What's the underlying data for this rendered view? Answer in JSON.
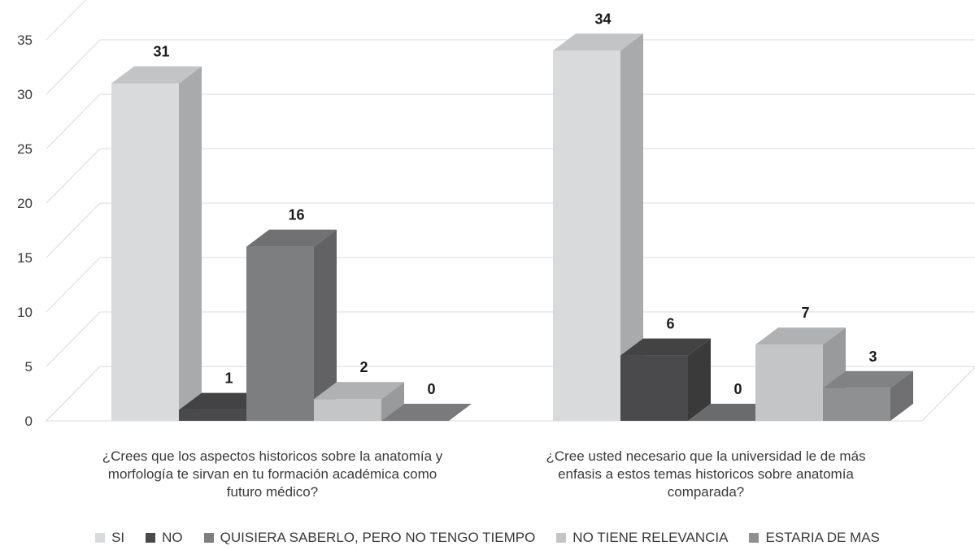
{
  "chart_data": {
    "type": "bar",
    "title": "",
    "xlabel": "",
    "ylabel": "",
    "ylim": [
      0,
      35
    ],
    "yticks": [
      0,
      5,
      10,
      15,
      20,
      25,
      30,
      35
    ],
    "grid": true,
    "legend_position": "bottom",
    "three_d": true,
    "categories": [
      [
        "¿Crees que los aspectos historicos sobre la anatomía y",
        "morfología te sirvan en tu formación académica como",
        "futuro médico?"
      ],
      [
        "¿Cree usted necesario que la universidad le de más",
        "enfasis a estos temas historicos sobre anatomía",
        "comparada?"
      ]
    ],
    "series": [
      {
        "name": "SI",
        "color": "#d9dadc",
        "values": [
          31,
          34
        ]
      },
      {
        "name": "NO",
        "color": "#4a4a4c",
        "values": [
          1,
          6
        ]
      },
      {
        "name": "QUISIERA SABERLO, PERO NO TENGO TIEMPO",
        "color": "#7d7e80",
        "values": [
          16,
          0
        ]
      },
      {
        "name": "NO TIENE RELEVANCIA",
        "color": "#c4c5c7",
        "values": [
          2,
          7
        ]
      },
      {
        "name": "ESTARIA DE MAS",
        "color": "#8f9092",
        "values": [
          0,
          3
        ]
      }
    ]
  }
}
